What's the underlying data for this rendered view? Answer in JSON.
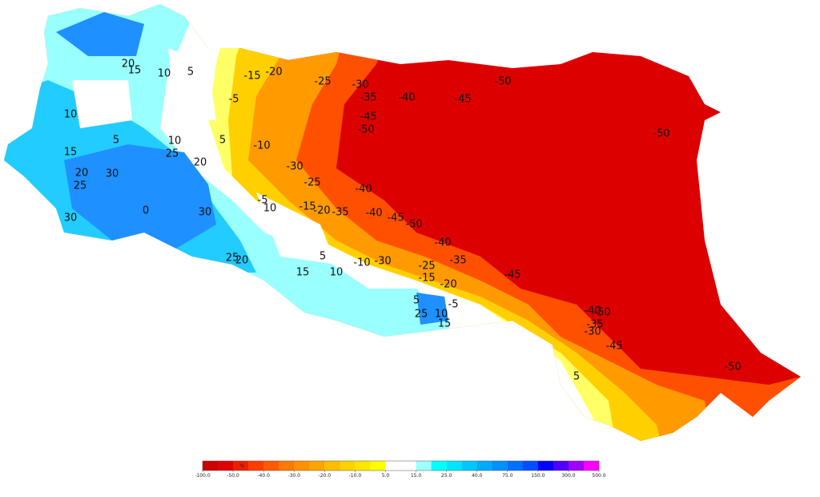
{
  "map": {
    "contour_labels": [
      20,
      15,
      10,
      5,
      -15,
      -20,
      -25,
      -30,
      -35,
      -40,
      -45,
      -50,
      -50,
      -5,
      10,
      5,
      10,
      5,
      15,
      25,
      20,
      20,
      30,
      25,
      0,
      30,
      30,
      -10,
      -30,
      -25,
      -40,
      -50,
      -45,
      -5,
      10,
      -15,
      -20,
      -35,
      -40,
      -45,
      -50,
      -40,
      -35,
      -25,
      -15,
      -20,
      -45,
      25,
      20,
      5,
      15,
      10,
      -10,
      -30,
      5,
      25,
      10,
      15,
      -5,
      -40,
      -50,
      -35,
      -30,
      -45,
      5,
      -50
    ],
    "colorbar": {
      "unit": "%",
      "ticks": [
        {
          "value": -100,
          "label": "-100.0"
        },
        {
          "value": -50,
          "label": "-50.0"
        },
        {
          "value": -40,
          "label": "-40.0"
        },
        {
          "value": -30,
          "label": "-30.0"
        },
        {
          "value": -20,
          "label": "-20.0"
        },
        {
          "value": -10,
          "label": "-10.0"
        },
        {
          "value": 5,
          "label": "5.0"
        },
        {
          "value": 15,
          "label": "15.0"
        },
        {
          "value": 25,
          "label": "25.0"
        },
        {
          "value": 40,
          "label": "40.0"
        },
        {
          "value": 75,
          "label": "75.0"
        },
        {
          "value": 150,
          "label": "150.0"
        },
        {
          "value": 300,
          "label": "300.0"
        },
        {
          "value": 500,
          "label": "500.0"
        }
      ],
      "colors": [
        "#cc0000",
        "#e00000",
        "#f01e00",
        "#ff3c00",
        "#ff5a00",
        "#ff7800",
        "#ff9000",
        "#ffa500",
        "#ffbe00",
        "#ffd200",
        "#ffe600",
        "#ffff00",
        "#ffffff",
        "#ffffff",
        "#a0ffff",
        "#00ffff",
        "#00e6ff",
        "#00c8ff",
        "#00aaff",
        "#0090ff",
        "#0070ff",
        "#0050ff",
        "#0000ff",
        "#5000ff",
        "#a000ff",
        "#ff00ff"
      ]
    }
  }
}
